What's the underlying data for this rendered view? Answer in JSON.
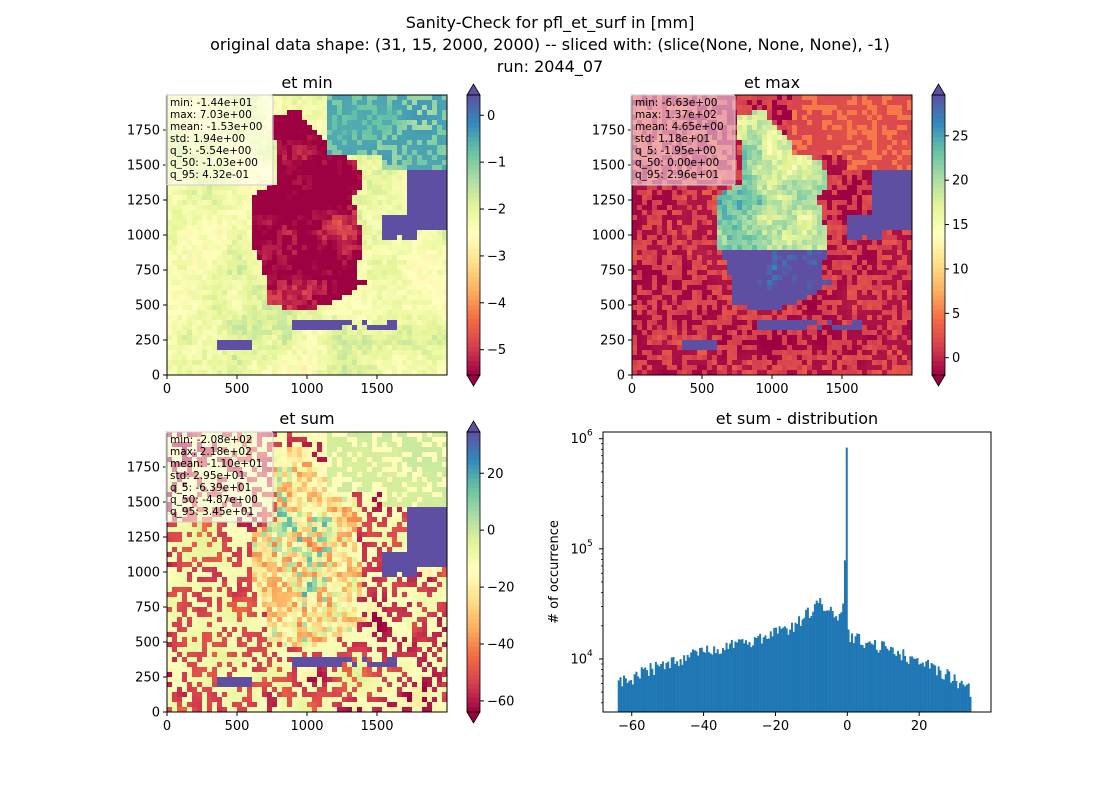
{
  "figure": {
    "suptitle_lines": [
      "Sanity-Check for pfl_et_surf in [mm]",
      "original data shape: (31, 15, 2000, 2000) -- sliced with: (slice(None, None, None), -1)",
      "run: 2044_07"
    ]
  },
  "chart_data": [
    {
      "type": "heatmap",
      "title": "et min",
      "colormap": "Spectral",
      "x_ticks": [
        0,
        500,
        1000,
        1500
      ],
      "y_ticks": [
        0,
        250,
        500,
        750,
        1000,
        1250,
        1500,
        1750
      ],
      "xlim": [
        0,
        2000
      ],
      "ylim": [
        0,
        2000
      ],
      "colorbar": {
        "vmin": -5.54,
        "vmax": 0.432,
        "ticks": [
          -5,
          -4,
          -3,
          -2,
          -1,
          0
        ],
        "tick_labels": [
          "−5",
          "−4",
          "−3",
          "−2",
          "−1",
          "0"
        ],
        "extend": "both"
      },
      "stats": [
        "min: -1.44e+01",
        "max: 7.03e+00",
        "mean: -1.53e+00",
        "std: 1.94e+00",
        "q_5: -5.54e+00",
        "q_50: -1.03e+00",
        "q_95: 4.32e-01"
      ]
    },
    {
      "type": "heatmap",
      "title": "et max",
      "colormap": "Spectral",
      "x_ticks": [
        0,
        500,
        1000,
        1500
      ],
      "y_ticks": [
        0,
        250,
        500,
        750,
        1000,
        1250,
        1500,
        1750
      ],
      "xlim": [
        0,
        2000
      ],
      "ylim": [
        0,
        2000
      ],
      "colorbar": {
        "vmin": -1.95,
        "vmax": 29.6,
        "ticks": [
          0,
          5,
          10,
          15,
          20,
          25
        ],
        "tick_labels": [
          "0",
          "5",
          "10",
          "15",
          "20",
          "25"
        ],
        "extend": "both"
      },
      "stats": [
        "min: -6.63e+00",
        "max: 1.37e+02",
        "mean: 4.65e+00",
        "std: 1.18e+01",
        "q_5: -1.95e+00",
        "q_50: 0.00e+00",
        "q_95: 2.96e+01"
      ]
    },
    {
      "type": "heatmap",
      "title": "et sum",
      "colormap": "Spectral",
      "x_ticks": [
        0,
        500,
        1000,
        1500
      ],
      "y_ticks": [
        0,
        250,
        500,
        750,
        1000,
        1250,
        1500,
        1750
      ],
      "xlim": [
        0,
        2000
      ],
      "ylim": [
        0,
        2000
      ],
      "colorbar": {
        "vmin": -63.9,
        "vmax": 34.5,
        "ticks": [
          -60,
          -40,
          -20,
          0,
          20
        ],
        "tick_labels": [
          "−60",
          "−40",
          "−20",
          "0",
          "20"
        ],
        "extend": "both"
      },
      "stats": [
        "min: -2.08e+02",
        "max: 2.18e+02",
        "mean: -1.10e+01",
        "std: 2.95e+01",
        "q_5: -6.39e+01",
        "q_50: -4.87e+00",
        "q_95: 3.45e+01"
      ]
    },
    {
      "type": "bar",
      "subtype": "histogram",
      "title": "et sum - distribution",
      "xlabel": "",
      "ylabel": "# of occurrence",
      "yscale": "log",
      "xlim": [
        -68,
        40
      ],
      "ylim": [
        3300,
        1150000
      ],
      "x_ticks": [
        -60,
        -40,
        -20,
        0,
        20
      ],
      "x_tick_labels": [
        "−60",
        "−40",
        "−20",
        "0",
        "20"
      ],
      "y_ticks": [
        10000,
        100000,
        1000000
      ],
      "y_tick_labels": [
        "10",
        "10",
        "10"
      ],
      "y_tick_exponents": [
        "4",
        "5",
        "6"
      ],
      "bar_color": "#1f77b4",
      "bins": {
        "start": -63.9,
        "end": 34.5,
        "count": 200
      },
      "anchors": [
        [
          -63.9,
          6300
        ],
        [
          -60,
          6700
        ],
        [
          -55,
          8000
        ],
        [
          -50,
          9200
        ],
        [
          -45,
          10500
        ],
        [
          -40,
          11500
        ],
        [
          -35,
          12800
        ],
        [
          -30,
          14000
        ],
        [
          -25,
          15000
        ],
        [
          -20,
          17000
        ],
        [
          -15,
          20000
        ],
        [
          -12,
          24000
        ],
        [
          -10,
          28000
        ],
        [
          -8,
          33000
        ],
        [
          -6,
          31000
        ],
        [
          -4,
          25000
        ],
        [
          -2,
          24000
        ],
        [
          -1,
          34000
        ],
        [
          -0.6,
          100000
        ],
        [
          -0.25,
          830000
        ],
        [
          0.2,
          18000
        ],
        [
          1,
          16000
        ],
        [
          5,
          14000
        ],
        [
          10,
          12800
        ],
        [
          15,
          11000
        ],
        [
          20,
          9500
        ],
        [
          25,
          8000
        ],
        [
          30,
          6500
        ],
        [
          34.5,
          5200
        ]
      ]
    }
  ]
}
